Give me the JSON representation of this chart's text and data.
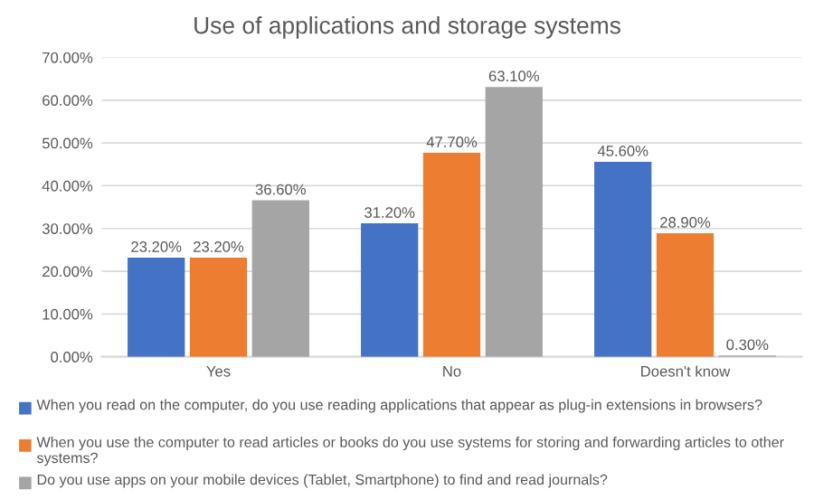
{
  "chart_data": {
    "type": "bar",
    "title": "Use of applications and storage systems",
    "categories": [
      "Yes",
      "No",
      "Doesn't know"
    ],
    "series": [
      {
        "name": "When you read on the computer, do you use reading applications that appear as plug-in extensions in browsers?",
        "color": "#4472c4",
        "values": [
          23.2,
          31.2,
          45.6
        ],
        "value_labels": [
          "23.20%",
          "31.20%",
          "45.60%"
        ]
      },
      {
        "name": "When you use the computer to read articles or books do you use systems for storing and forwarding articles to other systems?",
        "color": "#ed7d31",
        "values": [
          23.2,
          47.7,
          28.9
        ],
        "value_labels": [
          "23.20%",
          "47.70%",
          "28.90%"
        ]
      },
      {
        "name": "Do you use apps on your mobile devices (Tablet, Smartphone) to find and read journals?",
        "color": "#a5a5a5",
        "values": [
          36.6,
          63.1,
          0.3
        ],
        "value_labels": [
          "36.60%",
          "63.10%",
          "0.30%"
        ]
      }
    ],
    "ylim": [
      0,
      70
    ],
    "yticks": [
      {
        "value": 0,
        "label": "0.00%"
      },
      {
        "value": 10,
        "label": "10.00%"
      },
      {
        "value": 20,
        "label": "20.00%"
      },
      {
        "value": 30,
        "label": "30.00%"
      },
      {
        "value": 40,
        "label": "40.00%"
      },
      {
        "value": 50,
        "label": "50.00%"
      },
      {
        "value": 60,
        "label": "60.00%"
      },
      {
        "value": 70,
        "label": "70.00%"
      }
    ],
    "grid": "y",
    "legend": "bottom"
  }
}
